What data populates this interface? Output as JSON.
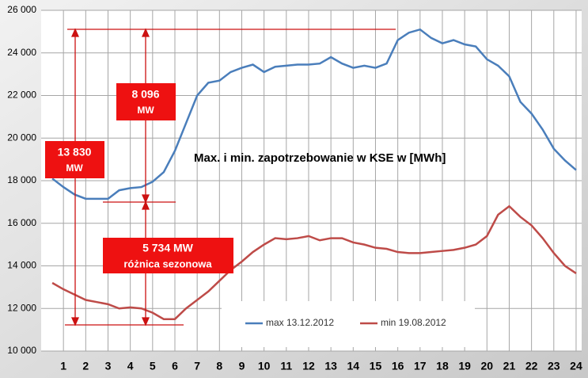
{
  "chart_data": {
    "type": "line",
    "title": "Max. i min. zapotrzebowanie w KSE w [MWh]",
    "x": [
      0.5,
      1,
      1.5,
      2,
      2.5,
      3,
      3.5,
      4,
      4.5,
      5,
      5.5,
      6,
      6.5,
      7,
      7.5,
      8,
      8.5,
      9,
      9.5,
      10,
      10.5,
      11,
      11.5,
      12,
      12.5,
      13,
      13.5,
      14,
      14.5,
      15,
      15.5,
      16,
      16.5,
      17,
      17.5,
      18,
      18.5,
      19,
      19.5,
      20,
      20.5,
      21,
      21.5,
      22,
      22.5,
      23,
      23.5,
      24
    ],
    "series": [
      {
        "name": "max 13.12.2012",
        "color": "#4a7ebb",
        "values": [
          18100,
          17700,
          17350,
          17150,
          17150,
          17150,
          17550,
          17650,
          17700,
          17950,
          18400,
          19400,
          20700,
          22000,
          22600,
          22700,
          23100,
          23300,
          23450,
          23100,
          23350,
          23400,
          23450,
          23450,
          23500,
          23800,
          23500,
          23300,
          23400,
          23300,
          23500,
          24600,
          24950,
          25100,
          24700,
          24450,
          24600,
          24400,
          24300,
          23700,
          23400,
          22900,
          21700,
          21150,
          20400,
          19500,
          18950,
          18500
        ]
      },
      {
        "name": "min 19.08.2012",
        "color": "#be4b48",
        "values": [
          13200,
          12900,
          12650,
          12400,
          12300,
          12200,
          12000,
          12050,
          12000,
          11800,
          11500,
          11500,
          12000,
          12400,
          12800,
          13300,
          13800,
          14200,
          14650,
          15000,
          15300,
          15250,
          15300,
          15400,
          15200,
          15300,
          15300,
          15100,
          15000,
          14850,
          14800,
          14650,
          14600,
          14600,
          14650,
          14700,
          14750,
          14850,
          15000,
          15400,
          16400,
          16800,
          16300,
          15900,
          15300,
          14600,
          14000,
          13650
        ]
      }
    ],
    "xlim": [
      0,
      24.25
    ],
    "xticks": [
      1,
      2,
      3,
      4,
      5,
      6,
      7,
      8,
      9,
      10,
      11,
      12,
      13,
      14,
      15,
      16,
      17,
      18,
      19,
      20,
      21,
      22,
      23,
      24
    ],
    "ylim": [
      10000,
      26000
    ],
    "yticks": [
      {
        "value": 10000,
        "label": "10 000"
      },
      {
        "value": 12000,
        "label": "12 000"
      },
      {
        "value": 14000,
        "label": "14 000"
      },
      {
        "value": 16000,
        "label": "16 000"
      },
      {
        "value": 18000,
        "label": "18 000"
      },
      {
        "value": 20000,
        "label": "20 000"
      },
      {
        "value": 22000,
        "label": "22 000"
      },
      {
        "value": 24000,
        "label": "24 000"
      },
      {
        "value": 26000,
        "label": "26 000"
      }
    ],
    "grid": true,
    "annotations": [
      [
        "8 096",
        "MW"
      ],
      [
        "13 830",
        "MW"
      ],
      [
        "5 734 MW",
        "różnica sezonowa"
      ]
    ]
  }
}
